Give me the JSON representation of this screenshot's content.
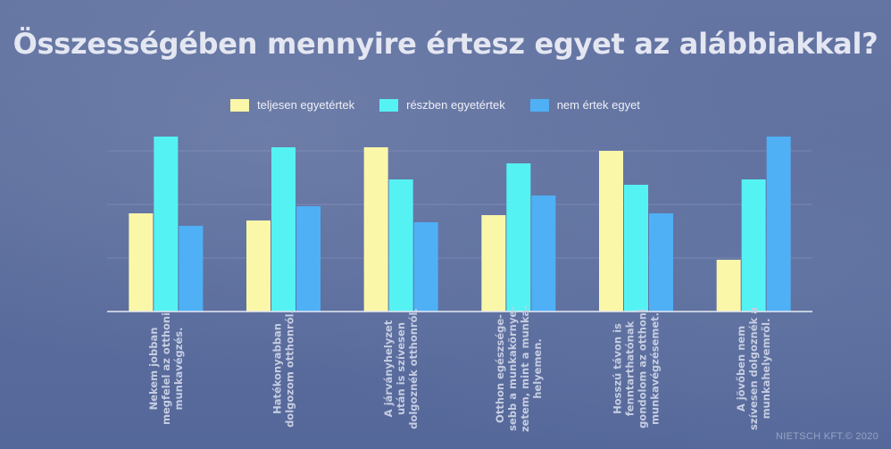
{
  "title": "Összességében mennyire értesz egyet az alábbiakkal?",
  "credit": "NIETSCH KFT.© 2020",
  "chart_data": {
    "type": "bar",
    "categories": [
      [
        "Nekem jobban",
        "megfelel az otthoni",
        "munkavégzés."
      ],
      [
        "Hatékonyabban",
        "dolgozom otthonról."
      ],
      [
        "A járványhelyzet",
        "után is szívesen",
        "dolgoznék otthonról."
      ],
      [
        "Otthon egészsége-",
        "sebb a munkakörnye-",
        "zetem, mint a munka-",
        "helyemen."
      ],
      [
        "Hosszú távon is",
        "fenntarthatónak",
        "gondolom az otthoni",
        "munkavégzésemet."
      ],
      [
        "A jövőben nem",
        "szívesen dolgoznék a",
        "munkahelyemről."
      ]
    ],
    "series": [
      {
        "name": "teljesen egyetértek",
        "color": "#fbf7a9",
        "values": [
          55,
          51,
          92,
          54,
          90,
          29
        ]
      },
      {
        "name": "részben egyetértek",
        "color": "#55f2f4",
        "values": [
          98,
          92,
          74,
          83,
          71,
          74
        ]
      },
      {
        "name": "nem értek egyet",
        "color": "#4fb0f5",
        "values": [
          48,
          59,
          50,
          65,
          55,
          98
        ]
      }
    ],
    "ylim": [
      0,
      100
    ],
    "grid": true,
    "legend": "top"
  }
}
